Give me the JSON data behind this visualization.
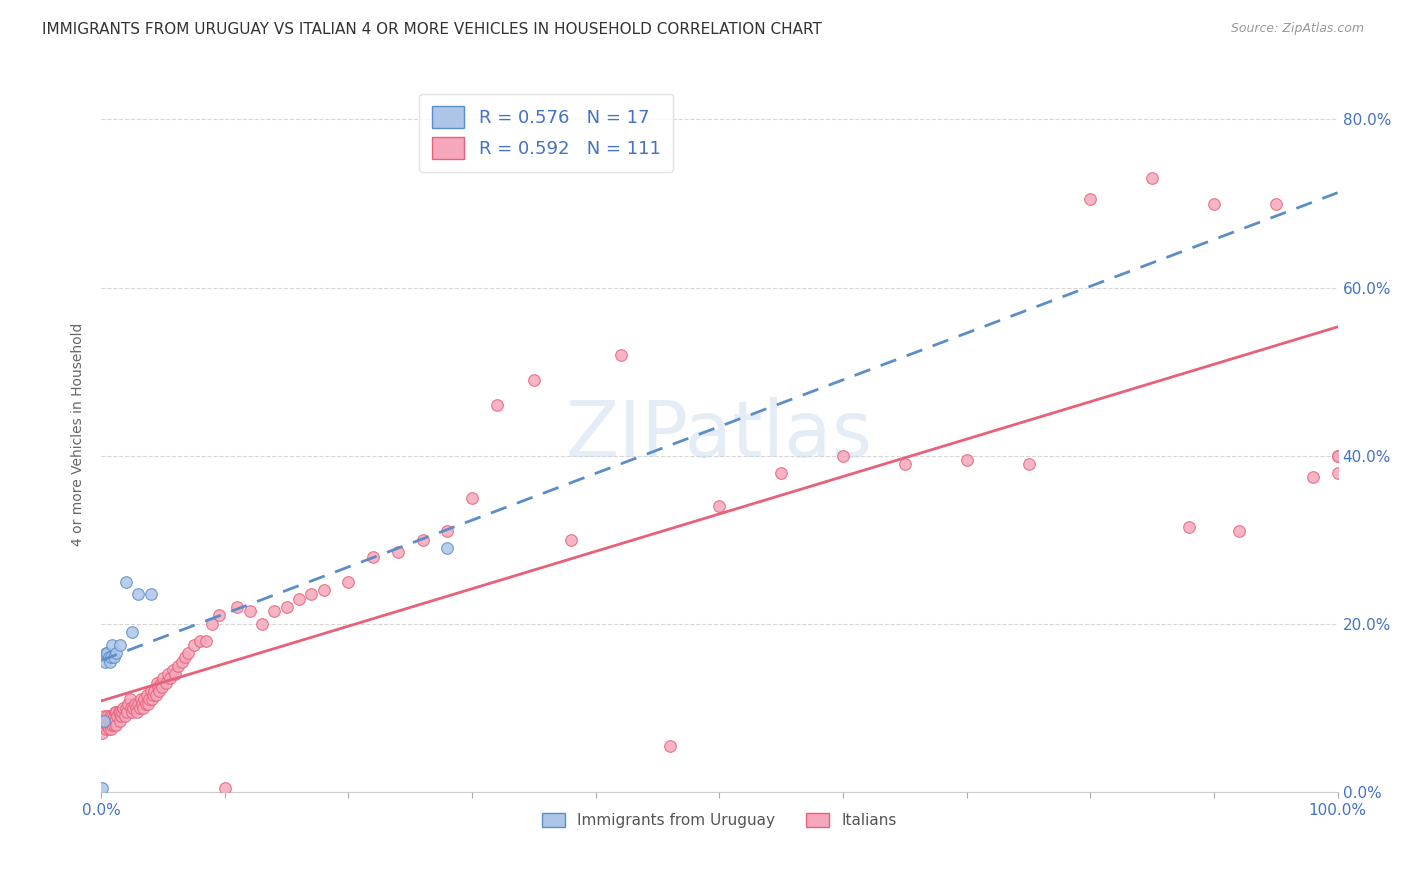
{
  "title": "IMMIGRANTS FROM URUGUAY VS ITALIAN 4 OR MORE VEHICLES IN HOUSEHOLD CORRELATION CHART",
  "source": "Source: ZipAtlas.com",
  "ylabel": "4 or more Vehicles in Household",
  "xlim": [
    0,
    1.0
  ],
  "ylim": [
    0,
    0.85
  ],
  "legend_label1": "Immigrants from Uruguay",
  "legend_label2": "Italians",
  "R1": 0.576,
  "N1": 17,
  "R2": 0.592,
  "N2": 111,
  "color1": "#adc6e8",
  "color2": "#f5a8bb",
  "line_color1": "#5b8dc8",
  "line_color2": "#e8607a",
  "background_color": "#ffffff",
  "uruguay_x": [
    0.001,
    0.002,
    0.003,
    0.004,
    0.005,
    0.006,
    0.007,
    0.008,
    0.009,
    0.01,
    0.012,
    0.015,
    0.02,
    0.025,
    0.03,
    0.04,
    0.28
  ],
  "uruguay_y": [
    0.005,
    0.085,
    0.155,
    0.165,
    0.165,
    0.16,
    0.155,
    0.16,
    0.175,
    0.16,
    0.165,
    0.175,
    0.25,
    0.19,
    0.235,
    0.235,
    0.29
  ],
  "italian_x": [
    0.001,
    0.002,
    0.002,
    0.003,
    0.004,
    0.004,
    0.005,
    0.005,
    0.006,
    0.006,
    0.007,
    0.007,
    0.008,
    0.008,
    0.009,
    0.009,
    0.01,
    0.01,
    0.011,
    0.011,
    0.012,
    0.012,
    0.013,
    0.014,
    0.015,
    0.015,
    0.016,
    0.017,
    0.018,
    0.019,
    0.02,
    0.021,
    0.022,
    0.023,
    0.024,
    0.025,
    0.026,
    0.027,
    0.028,
    0.029,
    0.03,
    0.031,
    0.032,
    0.033,
    0.034,
    0.035,
    0.036,
    0.037,
    0.038,
    0.039,
    0.04,
    0.041,
    0.042,
    0.043,
    0.044,
    0.045,
    0.046,
    0.047,
    0.048,
    0.049,
    0.05,
    0.052,
    0.054,
    0.056,
    0.058,
    0.06,
    0.062,
    0.065,
    0.068,
    0.07,
    0.075,
    0.08,
    0.085,
    0.09,
    0.095,
    0.1,
    0.11,
    0.12,
    0.13,
    0.14,
    0.15,
    0.16,
    0.17,
    0.18,
    0.2,
    0.22,
    0.24,
    0.26,
    0.28,
    0.3,
    0.32,
    0.35,
    0.38,
    0.42,
    0.46,
    0.5,
    0.55,
    0.6,
    0.65,
    0.7,
    0.75,
    0.8,
    0.85,
    0.88,
    0.9,
    0.92,
    0.95,
    0.98,
    1.0,
    1.0,
    1.0
  ],
  "italian_y": [
    0.07,
    0.08,
    0.09,
    0.08,
    0.085,
    0.075,
    0.08,
    0.09,
    0.075,
    0.085,
    0.08,
    0.09,
    0.075,
    0.085,
    0.08,
    0.09,
    0.08,
    0.09,
    0.085,
    0.095,
    0.08,
    0.095,
    0.09,
    0.095,
    0.085,
    0.095,
    0.09,
    0.095,
    0.1,
    0.09,
    0.1,
    0.095,
    0.105,
    0.11,
    0.1,
    0.095,
    0.1,
    0.105,
    0.1,
    0.095,
    0.105,
    0.1,
    0.11,
    0.105,
    0.1,
    0.11,
    0.105,
    0.115,
    0.105,
    0.11,
    0.12,
    0.11,
    0.115,
    0.12,
    0.115,
    0.13,
    0.125,
    0.12,
    0.13,
    0.125,
    0.135,
    0.13,
    0.14,
    0.135,
    0.145,
    0.14,
    0.15,
    0.155,
    0.16,
    0.165,
    0.175,
    0.18,
    0.18,
    0.2,
    0.21,
    0.005,
    0.22,
    0.215,
    0.2,
    0.215,
    0.22,
    0.23,
    0.235,
    0.24,
    0.25,
    0.28,
    0.285,
    0.3,
    0.31,
    0.35,
    0.46,
    0.49,
    0.3,
    0.52,
    0.055,
    0.34,
    0.38,
    0.4,
    0.39,
    0.395,
    0.39,
    0.705,
    0.73,
    0.315,
    0.7,
    0.31,
    0.7,
    0.375,
    0.4,
    0.38,
    0.4
  ]
}
